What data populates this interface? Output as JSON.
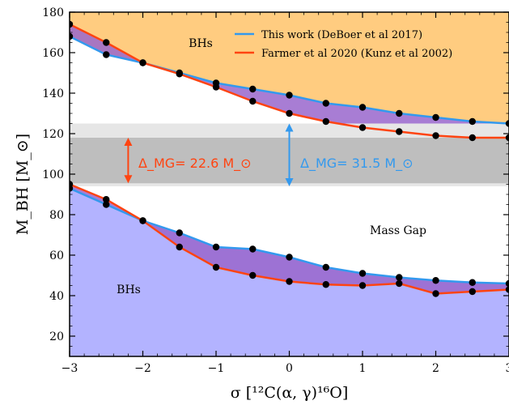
{
  "chart_data": {
    "type": "line",
    "xlabel": "σ [¹²C(α, γ)¹⁶O]",
    "ylabel": "M_BH [M_⊙]",
    "xlim": [
      -3,
      3
    ],
    "ylim": [
      10,
      180
    ],
    "xticks": [
      -3,
      -2,
      -1,
      0,
      1,
      2,
      3
    ],
    "xtick_labels": [
      "−3",
      "−2",
      "−1",
      "0",
      "1",
      "2",
      "3"
    ],
    "yticks": [
      20,
      40,
      60,
      80,
      100,
      120,
      140,
      160,
      180
    ],
    "ytick_labels": [
      "20",
      "40",
      "60",
      "80",
      "100",
      "120",
      "140",
      "160",
      "180"
    ],
    "grid": false,
    "legend_position": "top-right",
    "x": [
      -3,
      -2.5,
      -2,
      -1.5,
      -1,
      -0.5,
      0,
      0.5,
      1,
      1.5,
      2,
      2.5,
      3
    ],
    "series": [
      {
        "name": "This work (DeBoer et al 2017)",
        "color": "#3399ee",
        "upper": [
          168,
          159,
          155,
          150,
          145,
          142,
          139,
          135,
          133,
          130,
          128,
          126,
          125
        ],
        "lower": [
          93,
          85,
          77,
          71,
          64,
          63,
          59,
          54,
          51,
          49,
          47.5,
          46.5,
          46
        ]
      },
      {
        "name": "Farmer et al 2020 (Kunz et al 2002)",
        "color": "#ff4411",
        "upper": [
          174,
          165,
          155,
          149.5,
          143,
          136,
          130,
          126,
          123,
          121,
          119,
          118,
          118
        ],
        "lower": [
          95,
          87.5,
          77,
          64,
          54,
          50,
          47,
          45.5,
          45,
          46,
          41,
          42,
          43
        ]
      }
    ],
    "bands": {
      "outer": [
        94,
        125
      ],
      "inner": [
        95.5,
        118
      ]
    },
    "annotations": {
      "bh_top": "BHs",
      "bh_bottom": "BHs",
      "mass_gap": "Mass Gap",
      "delta_farmer": {
        "text": "Δ_MG= 22.6 M_⊙",
        "value": 22.6,
        "at_x": -2.2,
        "range": [
          95.5,
          118
        ]
      },
      "delta_this_work": {
        "text": "Δ_MG= 31.5 M_⊙",
        "value": 31.5,
        "at_x": 0,
        "range": [
          94,
          125
        ]
      }
    },
    "colors": {
      "bh_top_fill": "#ffcc80",
      "bh_bottom_fill": "#b3b3ff",
      "between_fill": "#9966cc",
      "band_outer": "#e6e6e6",
      "band_inner": "#bebebe",
      "marker": "#000000"
    }
  }
}
